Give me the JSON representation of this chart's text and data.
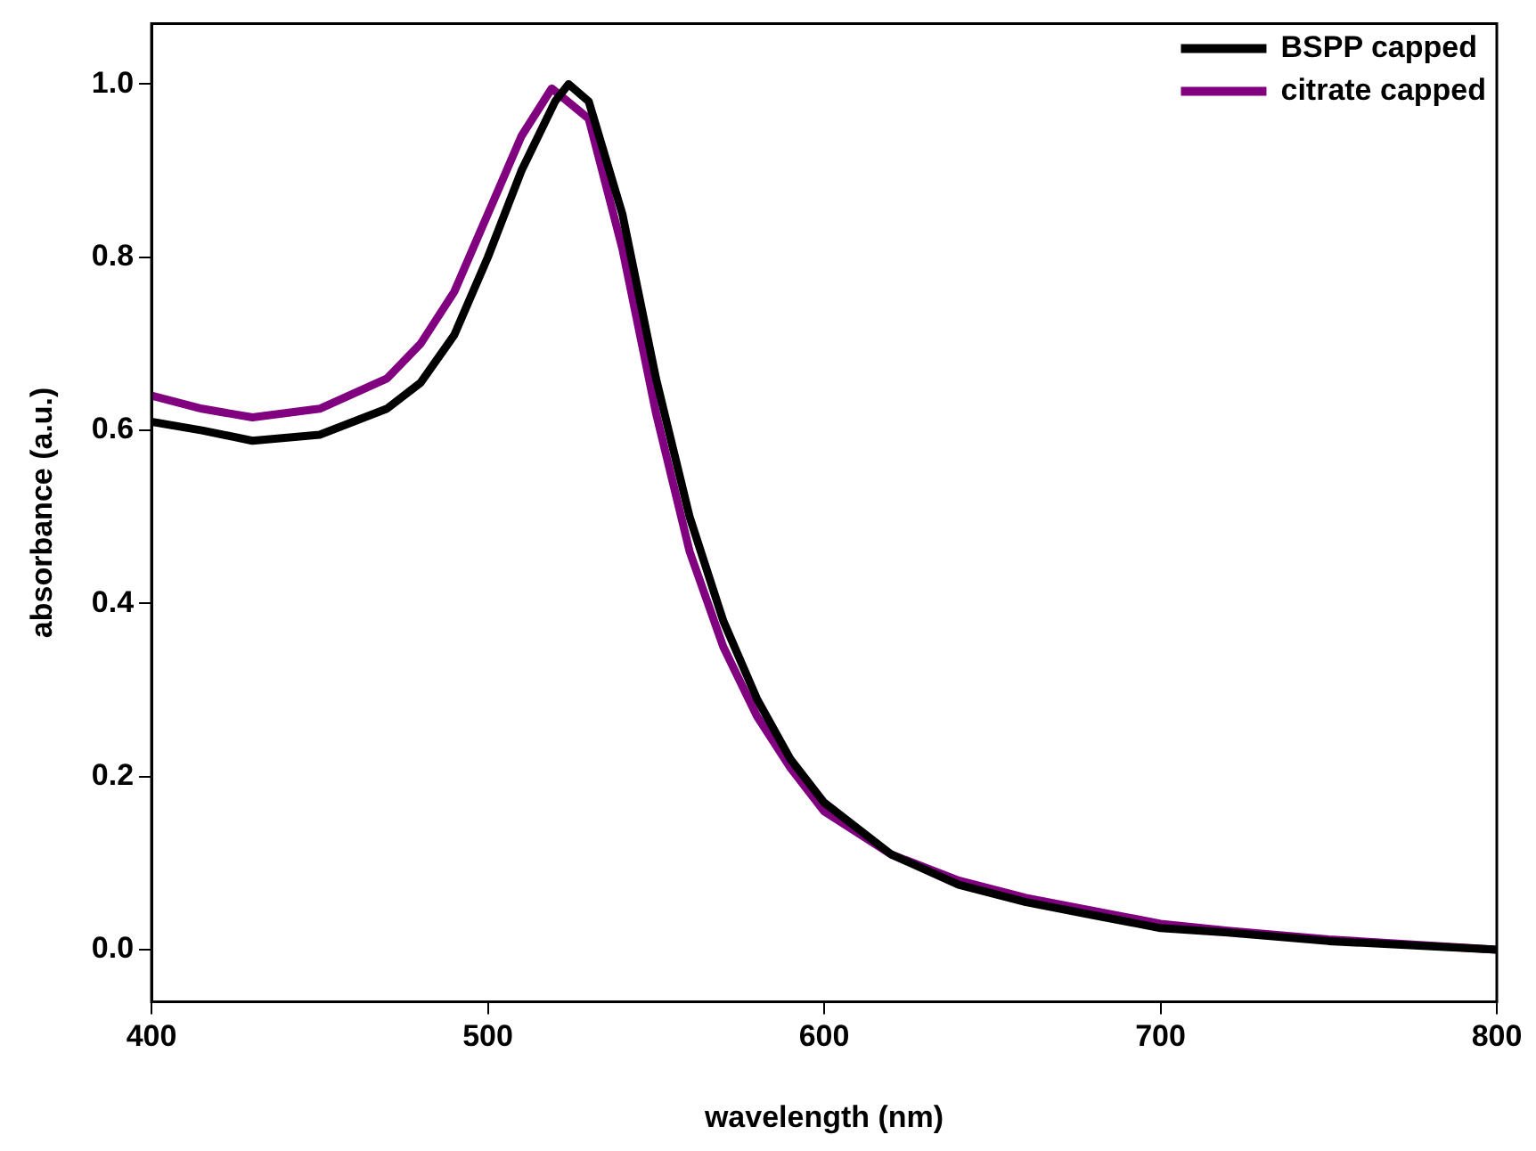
{
  "chart_data": {
    "type": "line",
    "xlabel": "wavelength (nm)",
    "ylabel": "absorbance (a.u.)",
    "xlim": [
      400,
      800
    ],
    "xticks": [
      400,
      500,
      600,
      700,
      800
    ],
    "ylim": [
      -0.06,
      1.07
    ],
    "yticks": [
      {
        "value": 0,
        "label": "0.0"
      },
      0.2,
      0.4,
      0.6,
      0.8,
      {
        "value": 1,
        "label": "1.0"
      }
    ],
    "grid": false,
    "legend": "top right",
    "marker": "none",
    "line_style": "solid",
    "series": [
      {
        "name": "BSPP capped",
        "color": "#000000",
        "x": [
          400,
          415,
          430,
          450,
          470,
          480,
          490,
          500,
          510,
          520,
          524,
          530,
          540,
          550,
          560,
          570,
          580,
          590,
          600,
          620,
          640,
          660,
          680,
          700,
          720,
          750,
          800
        ],
        "values": [
          0.61,
          0.6,
          0.588,
          0.595,
          0.625,
          0.655,
          0.71,
          0.8,
          0.9,
          0.98,
          1.0,
          0.98,
          0.85,
          0.66,
          0.5,
          0.38,
          0.29,
          0.22,
          0.17,
          0.11,
          0.075,
          0.055,
          0.04,
          0.025,
          0.02,
          0.01,
          0.0
        ]
      },
      {
        "name": "citrate capped",
        "color": "#800080",
        "x": [
          400,
          415,
          430,
          450,
          470,
          480,
          490,
          500,
          510,
          519,
          530,
          540,
          550,
          560,
          570,
          580,
          590,
          600,
          620,
          640,
          660,
          680,
          700,
          720,
          750,
          800
        ],
        "values": [
          0.64,
          0.625,
          0.615,
          0.625,
          0.66,
          0.7,
          0.76,
          0.85,
          0.94,
          0.995,
          0.96,
          0.81,
          0.62,
          0.46,
          0.35,
          0.27,
          0.21,
          0.16,
          0.11,
          0.08,
          0.06,
          0.045,
          0.03,
          0.022,
          0.012,
          0.0
        ]
      }
    ]
  }
}
